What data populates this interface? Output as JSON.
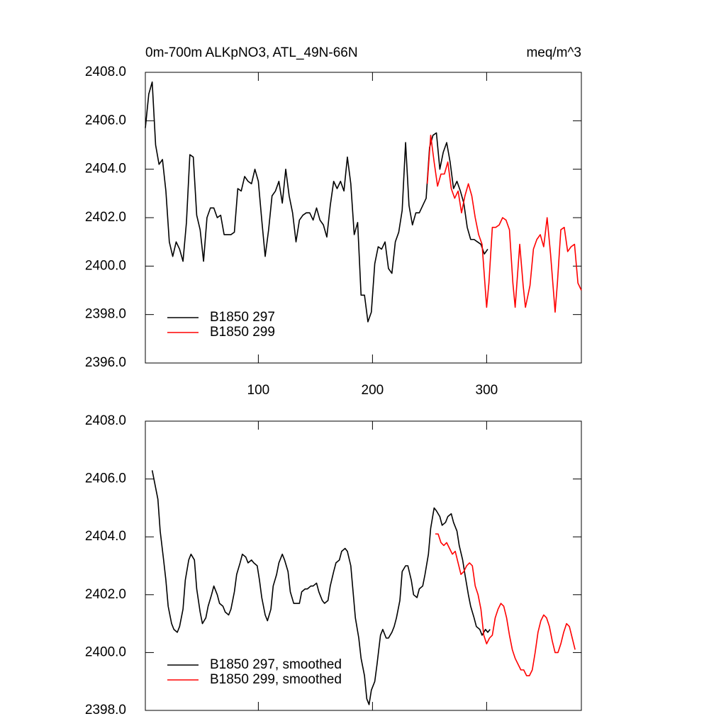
{
  "chart_data": [
    {
      "type": "line",
      "title": "0m-700m ALKpNO3, ATL_49N-66N",
      "units": "meq/m^3",
      "xlim": [
        1,
        383
      ],
      "xticks": [
        100,
        200,
        300
      ],
      "xtick_labels": true,
      "ylim": [
        2396,
        2408
      ],
      "yticks": [
        {
          "value": 2396,
          "label": "2396.0"
        },
        {
          "value": 2398,
          "label": "2398.0"
        },
        {
          "value": 2400,
          "label": "2400.0"
        },
        {
          "value": 2402,
          "label": "2402.0"
        },
        {
          "value": 2404,
          "label": "2404.0"
        },
        {
          "value": 2406,
          "label": "2406.0"
        },
        {
          "value": 2408,
          "label": "2408.0"
        }
      ],
      "legend": "lower left",
      "series": [
        {
          "name": "B1850 297",
          "color": "#000000",
          "x": [
            1,
            4,
            7,
            10,
            13,
            16,
            19,
            22,
            25,
            28,
            31,
            34,
            37,
            40,
            43,
            46,
            49,
            52,
            55,
            58,
            61,
            64,
            67,
            70,
            73,
            76,
            79,
            82,
            85,
            88,
            91,
            94,
            97,
            100,
            103,
            106,
            109,
            112,
            115,
            118,
            121,
            124,
            127,
            130,
            133,
            136,
            139,
            142,
            145,
            148,
            151,
            154,
            157,
            160,
            163,
            166,
            169,
            172,
            175,
            178,
            181,
            184,
            187,
            190,
            193,
            196,
            199,
            202,
            205,
            208,
            211,
            214,
            217,
            220,
            223,
            226,
            229,
            232,
            235,
            238,
            241,
            244,
            247,
            250,
            253,
            256,
            259,
            262,
            265,
            268,
            271,
            274,
            277,
            280,
            283,
            286,
            289,
            292,
            295,
            298,
            301
          ],
          "values": [
            2405.7,
            2407.1,
            2407.6,
            2405.0,
            2404.2,
            2404.4,
            2403.1,
            2401.0,
            2400.4,
            2401.0,
            2400.7,
            2400.2,
            2401.8,
            2404.6,
            2404.5,
            2402.1,
            2401.5,
            2400.2,
            2402.0,
            2402.4,
            2402.4,
            2402.0,
            2402.1,
            2401.3,
            2401.3,
            2401.3,
            2401.4,
            2403.2,
            2403.1,
            2403.7,
            2403.5,
            2403.4,
            2404.0,
            2403.5,
            2401.9,
            2400.4,
            2401.5,
            2402.9,
            2403.1,
            2403.5,
            2402.6,
            2404.0,
            2402.9,
            2402.2,
            2401.0,
            2401.9,
            2402.1,
            2402.2,
            2402.2,
            2401.9,
            2402.4,
            2401.9,
            2401.7,
            2401.2,
            2402.5,
            2403.5,
            2403.2,
            2403.5,
            2403.1,
            2404.5,
            2403.4,
            2401.3,
            2401.8,
            2398.8,
            2398.8,
            2397.7,
            2398.1,
            2400.1,
            2400.8,
            2400.7,
            2401.0,
            2399.9,
            2399.7,
            2401.0,
            2401.4,
            2402.3,
            2405.1,
            2402.5,
            2401.7,
            2402.2,
            2402.2,
            2402.5,
            2402.8,
            2404.9,
            2405.4,
            2405.5,
            2404.0,
            2404.7,
            2405.1,
            2404.3,
            2403.2,
            2403.5,
            2403.1,
            2402.6,
            2401.6,
            2401.1,
            2401.1,
            2401.0,
            2400.9,
            2400.5,
            2400.7
          ]
        },
        {
          "name": "B1850 299",
          "color": "#ff0000",
          "x": [
            248,
            251,
            254,
            257,
            260,
            263,
            266,
            269,
            272,
            275,
            278,
            281,
            284,
            287,
            290,
            293,
            296,
            300,
            302,
            305,
            308,
            311,
            314,
            317,
            320,
            323,
            325,
            329,
            332,
            334,
            338,
            341,
            344,
            347,
            350,
            353,
            356,
            360,
            362,
            365,
            368,
            371,
            374,
            377,
            380,
            383
          ],
          "values": [
            2403.4,
            2405.4,
            2404.3,
            2403.3,
            2403.8,
            2403.8,
            2404.3,
            2403.2,
            2402.8,
            2403.1,
            2402.2,
            2402.9,
            2403.4,
            2402.9,
            2402.0,
            2401.3,
            2400.9,
            2398.3,
            2399.3,
            2401.6,
            2401.6,
            2401.7,
            2402.0,
            2401.9,
            2401.5,
            2399.3,
            2398.3,
            2400.9,
            2399.2,
            2398.3,
            2399.2,
            2400.7,
            2401.1,
            2401.3,
            2400.8,
            2402.0,
            2400.5,
            2398.1,
            2399.3,
            2401.5,
            2401.6,
            2400.6,
            2400.8,
            2400.9,
            2399.3,
            2399.0
          ]
        }
      ]
    },
    {
      "type": "line",
      "xlim": [
        1,
        383
      ],
      "xticks": [
        100,
        200,
        300
      ],
      "xtick_labels": false,
      "ylim": [
        2398,
        2408
      ],
      "yticks": [
        {
          "value": 2398,
          "label": "2398.0"
        },
        {
          "value": 2400,
          "label": "2400.0"
        },
        {
          "value": 2402,
          "label": "2402.0"
        },
        {
          "value": 2404,
          "label": "2404.0"
        },
        {
          "value": 2406,
          "label": "2406.0"
        },
        {
          "value": 2408,
          "label": "2408.0"
        }
      ],
      "legend": "lower left",
      "series": [
        {
          "name": "B1850 297, smoothed",
          "color": "#000000",
          "x": [
            7,
            9,
            12,
            14,
            17,
            19,
            21,
            24,
            26,
            29,
            31,
            34,
            36,
            39,
            41,
            44,
            46,
            49,
            51,
            54,
            56,
            59,
            61,
            64,
            66,
            69,
            71,
            74,
            76,
            79,
            81,
            84,
            86,
            89,
            91,
            94,
            96,
            99,
            101,
            103,
            106,
            108,
            111,
            113,
            116,
            118,
            121,
            123,
            126,
            128,
            131,
            133,
            136,
            138,
            141,
            143,
            146,
            148,
            151,
            153,
            156,
            158,
            161,
            163,
            166,
            168,
            171,
            173,
            176,
            178,
            181,
            183,
            185,
            188,
            190,
            193,
            195,
            197,
            199,
            202,
            204,
            207,
            209,
            212,
            214,
            217,
            219,
            221,
            224,
            226,
            229,
            231,
            234,
            236,
            239,
            241,
            244,
            246,
            249,
            251,
            254,
            256,
            259,
            261,
            264,
            266,
            269,
            271,
            274,
            276,
            279,
            281,
            284,
            286,
            289,
            291,
            294,
            296,
            299,
            301,
            303
          ],
          "values": [
            2406.3,
            2405.9,
            2405.3,
            2404.2,
            2403.2,
            2402.5,
            2401.6,
            2401.0,
            2400.8,
            2400.7,
            2400.9,
            2401.5,
            2402.5,
            2403.2,
            2403.4,
            2403.2,
            2402.2,
            2401.4,
            2401.0,
            2401.2,
            2401.6,
            2402.0,
            2402.3,
            2402.0,
            2401.7,
            2401.6,
            2401.4,
            2401.3,
            2401.5,
            2402.1,
            2402.7,
            2403.1,
            2403.4,
            2403.3,
            2403.1,
            2403.2,
            2403.1,
            2403.0,
            2402.5,
            2401.9,
            2401.3,
            2401.1,
            2401.5,
            2402.3,
            2402.7,
            2403.1,
            2403.4,
            2403.2,
            2402.8,
            2402.1,
            2401.7,
            2401.7,
            2401.7,
            2402.1,
            2402.2,
            2402.2,
            2402.3,
            2402.3,
            2402.4,
            2402.1,
            2401.8,
            2401.7,
            2401.8,
            2402.3,
            2402.8,
            2403.1,
            2403.2,
            2403.5,
            2403.6,
            2403.5,
            2403.0,
            2402.1,
            2401.2,
            2400.5,
            2399.8,
            2399.2,
            2398.4,
            2398.2,
            2398.7,
            2399.0,
            2399.6,
            2400.6,
            2400.8,
            2400.5,
            2400.5,
            2400.7,
            2400.9,
            2401.2,
            2401.8,
            2402.8,
            2403.0,
            2403.0,
            2402.5,
            2402.0,
            2401.9,
            2402.2,
            2402.3,
            2402.7,
            2403.4,
            2404.3,
            2405.0,
            2404.9,
            2404.7,
            2404.4,
            2404.5,
            2404.7,
            2404.8,
            2404.5,
            2404.2,
            2403.7,
            2403.2,
            2402.7,
            2402.0,
            2401.6,
            2401.2,
            2400.9,
            2400.8,
            2400.6,
            2400.8,
            2400.7,
            2400.8
          ]
        },
        {
          "name": "B1850 299, smoothed",
          "color": "#ff0000",
          "x": [
            255,
            257.5,
            260,
            262.5,
            265,
            267.5,
            270,
            272.5,
            275,
            277.5,
            280,
            282.5,
            285,
            287.5,
            290,
            292.5,
            295,
            297.5,
            300,
            302.5,
            305,
            307.5,
            310,
            312.5,
            315,
            317.5,
            320,
            322.5,
            325,
            327.5,
            330,
            332.5,
            335,
            337.5,
            340,
            342.5,
            345,
            347.5,
            350,
            352.5,
            355,
            357.5,
            360,
            362.5,
            365,
            367.5,
            370,
            372.5,
            375,
            377.5
          ],
          "values": [
            2404.1,
            2404.1,
            2403.8,
            2403.7,
            2403.8,
            2403.6,
            2403.4,
            2403.5,
            2403.1,
            2402.7,
            2402.8,
            2403.0,
            2403.1,
            2403.0,
            2402.3,
            2402.0,
            2401.5,
            2400.6,
            2400.3,
            2400.5,
            2400.6,
            2401.2,
            2401.5,
            2401.7,
            2401.6,
            2401.2,
            2400.6,
            2400.1,
            2399.8,
            2399.6,
            2399.4,
            2399.4,
            2399.2,
            2399.2,
            2399.4,
            2400.0,
            2400.7,
            2401.1,
            2401.3,
            2401.2,
            2400.9,
            2400.4,
            2400.0,
            2400.0,
            2400.3,
            2400.7,
            2401.0,
            2400.9,
            2400.5,
            2400.1
          ]
        }
      ]
    }
  ]
}
